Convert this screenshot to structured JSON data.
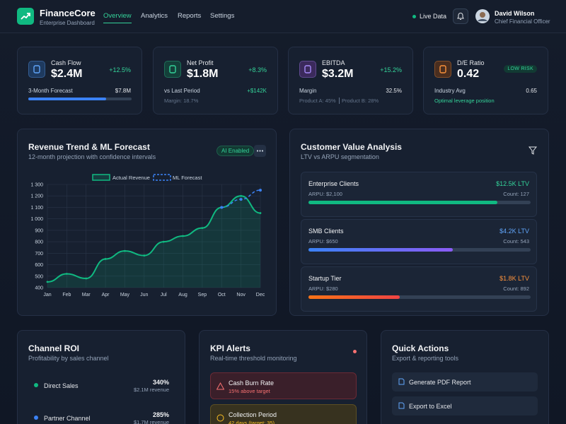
{
  "header": {
    "brand": "FinanceCore",
    "tagline": "Enterprise Dashboard",
    "nav": [
      "Overview",
      "Analytics",
      "Reports",
      "Settings"
    ],
    "status": "Live Data",
    "user": {
      "name": "David Wilson",
      "role": "Chief Financial Officer"
    }
  },
  "kpis": [
    {
      "label": "Cash Flow",
      "value": "$2.4M",
      "change": "+12.5%",
      "detail_label": "3-Month Forecast",
      "detail_value": "$7.8M",
      "notes": []
    },
    {
      "label": "Net Profit",
      "value": "$1.8M",
      "change": "+8.3%",
      "detail_label": "vs Last Period",
      "detail_value": "+$142K",
      "notes": [
        "Margin: 18.7%"
      ]
    },
    {
      "label": "EBITDA",
      "value": "$3.2M",
      "change": "+15.2%",
      "detail_label": "Margin",
      "detail_value": "32.5%",
      "notes": [
        "Product A: 45%",
        "Product B: 28%"
      ]
    },
    {
      "label": "D/E Ratio",
      "value": "0.42",
      "badge": "LOW RISK",
      "detail_label": "Industry Avg",
      "detail_value": "0.65",
      "notes": [
        "Optimal leverage position"
      ]
    }
  ],
  "chart_data": {
    "type": "line",
    "title": "Revenue Trend & ML Forecast",
    "subtitle": "12-month projection with confidence intervals",
    "badge": "AI Enabled",
    "categories": [
      "Jan",
      "Feb",
      "Mar",
      "Apr",
      "May",
      "Jun",
      "Jul",
      "Aug",
      "Sep",
      "Oct",
      "Nov",
      "Dec"
    ],
    "series": [
      {
        "name": "Actual Revenue",
        "color": "#10b981",
        "values": [
          450,
          520,
          480,
          650,
          720,
          680,
          800,
          850,
          920,
          1100,
          1200,
          1050
        ]
      },
      {
        "name": "ML Forecast",
        "color": "#3b82f6",
        "dashed": true,
        "values": [
          null,
          null,
          null,
          null,
          null,
          null,
          null,
          null,
          null,
          1100,
          1170,
          1250
        ]
      }
    ],
    "ylim": [
      400,
      1300
    ],
    "yticks": [
      400,
      500,
      600,
      700,
      800,
      900,
      {
        "value": 1000,
        "label": "1 000"
      },
      {
        "value": 1100,
        "label": "1 100"
      },
      {
        "value": 1200,
        "label": "1 200"
      },
      {
        "value": 1300,
        "label": "1 300"
      }
    ],
    "grid": true
  },
  "customers": {
    "title": "Customer Value Analysis",
    "subtitle": "LTV vs ARPU segmentation",
    "segments": [
      {
        "name": "Enterprise Clients",
        "ltv": "$12.5K LTV",
        "arpu": "ARPU: $2,100",
        "count": "Count: 127"
      },
      {
        "name": "SMB Clients",
        "ltv": "$4.2K LTV",
        "arpu": "ARPU: $650",
        "count": "Count: 543"
      },
      {
        "name": "Startup Tier",
        "ltv": "$1.8K LTV",
        "arpu": "ARPU: $280",
        "count": "Count: 892"
      }
    ]
  },
  "channels": {
    "title": "Channel ROI",
    "subtitle": "Profitability by sales channel",
    "items": [
      {
        "name": "Direct Sales",
        "roi": "340%",
        "revenue": "$2.1M revenue"
      },
      {
        "name": "Partner Channel",
        "roi": "285%",
        "revenue": "$1.7M revenue"
      }
    ]
  },
  "alerts": {
    "title": "KPI Alerts",
    "subtitle": "Real-time threshold monitoring",
    "items": [
      {
        "name": "Cash Burn Rate",
        "detail": "15% above target"
      },
      {
        "name": "Collection Period",
        "detail": "42 days (target: 35)"
      }
    ]
  },
  "actions": {
    "title": "Quick Actions",
    "subtitle": "Export & reporting tools",
    "items": [
      "Generate PDF Report",
      "Export to Excel"
    ]
  }
}
